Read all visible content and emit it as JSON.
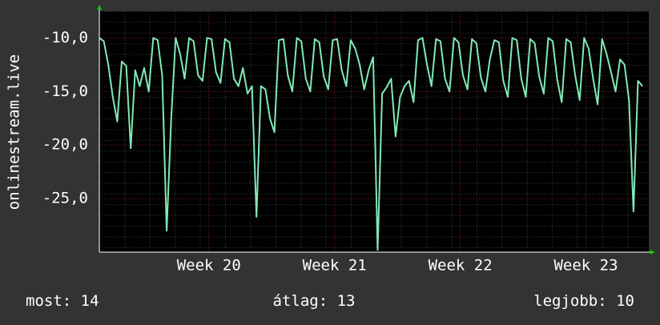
{
  "chart_data": {
    "type": "line",
    "y_label": "onlinestream.live",
    "x": [
      0,
      0.25,
      0.5,
      0.75,
      1,
      1.25,
      1.5,
      1.75,
      2,
      2.25,
      2.5,
      2.75,
      3,
      3.25,
      3.5,
      3.75,
      4,
      4.25,
      4.5,
      4.75,
      5,
      5.25,
      5.5,
      5.75,
      6,
      6.25,
      6.5,
      6.75,
      7,
      7.25,
      7.5,
      7.75,
      8,
      8.25,
      8.5,
      8.75,
      9,
      9.25,
      9.5,
      9.75,
      10,
      10.25,
      10.5,
      10.75,
      11,
      11.25,
      11.5,
      11.75,
      12,
      12.25,
      12.5,
      12.75,
      13,
      13.25,
      13.5,
      13.75,
      14,
      14.25,
      14.5,
      14.75,
      15,
      15.25,
      15.5,
      15.75,
      16,
      16.25,
      16.5,
      16.75,
      17,
      17.25,
      17.5,
      17.75,
      18,
      18.25,
      18.5,
      18.75,
      19,
      19.25,
      19.5,
      19.75,
      20,
      20.25,
      20.5,
      20.75,
      21,
      21.25,
      21.5,
      21.75,
      22,
      22.25,
      22.5,
      22.75,
      23,
      23.25,
      23.5,
      23.75,
      24,
      24.25,
      24.5,
      24.75,
      25,
      25.25,
      25.5,
      25.75,
      26,
      26.25,
      26.5,
      26.75,
      27,
      27.25,
      27.5,
      27.75,
      28,
      28.25,
      28.5,
      28.75,
      29,
      29.25,
      29.5,
      29.75,
      30,
      30.25
    ],
    "series": [
      {
        "color": "#80eab6",
        "values": [
          -10.0,
          -10.3,
          -12.5,
          -15.5,
          -17.8,
          -12.2,
          -12.6,
          -20.3,
          -13.0,
          -14.5,
          -12.8,
          -15.0,
          -10.0,
          -10.2,
          -13.5,
          -28.0,
          -17.6,
          -10.0,
          -11.5,
          -13.8,
          -10.0,
          -10.3,
          -13.5,
          -14.0,
          -10.0,
          -10.1,
          -13.2,
          -14.2,
          -10.1,
          -10.4,
          -13.8,
          -14.5,
          -12.8,
          -15.2,
          -14.5,
          -26.7,
          -14.5,
          -14.8,
          -17.5,
          -18.8,
          -10.2,
          -10.1,
          -13.5,
          -15.0,
          -10.0,
          -10.3,
          -13.8,
          -15.0,
          -10.1,
          -10.4,
          -13.6,
          -14.8,
          -10.2,
          -10.1,
          -13.0,
          -14.5,
          -10.2,
          -11.0,
          -12.5,
          -14.8,
          -13.0,
          -11.8,
          -29.8,
          -15.2,
          -14.6,
          -13.8,
          -19.2,
          -15.5,
          -14.5,
          -14.0,
          -16.0,
          -10.2,
          -10.0,
          -12.5,
          -14.5,
          -10.1,
          -10.3,
          -13.8,
          -15.0,
          -10.0,
          -10.4,
          -13.5,
          -14.8,
          -10.1,
          -10.5,
          -13.7,
          -15.0,
          -12.0,
          -10.2,
          -10.4,
          -14.0,
          -15.5,
          -10.0,
          -10.2,
          -13.8,
          -15.5,
          -10.1,
          -10.5,
          -13.6,
          -15.2,
          -10.0,
          -10.3,
          -13.9,
          -16.0,
          -10.1,
          -10.4,
          -13.5,
          -15.8,
          -10.0,
          -11.0,
          -13.8,
          -16.2,
          -10.1,
          -11.5,
          -13.2,
          -15.0,
          -12.0,
          -12.5,
          -15.8,
          -26.2,
          -14.0,
          -14.5
        ]
      }
    ],
    "xlim": [
      0,
      30.6
    ],
    "xticks": [
      {
        "value": 6.1,
        "label": "Week 20"
      },
      {
        "value": 13.1,
        "label": "Week 21"
      },
      {
        "value": 20.1,
        "label": "Week 22"
      },
      {
        "value": 27.1,
        "label": "Week 23"
      }
    ],
    "ylim": [
      -30,
      -7.5
    ],
    "yticks": [
      {
        "value": -25,
        "label": "-25,0"
      },
      {
        "value": -20,
        "label": "-20,0"
      },
      {
        "value": -15,
        "label": "-15,0"
      },
      {
        "value": -10,
        "label": "-10,0"
      }
    ],
    "grid": true,
    "footer": {
      "current": "most: 14",
      "average": "átlag: 13",
      "best": "legjobb: 10"
    }
  }
}
